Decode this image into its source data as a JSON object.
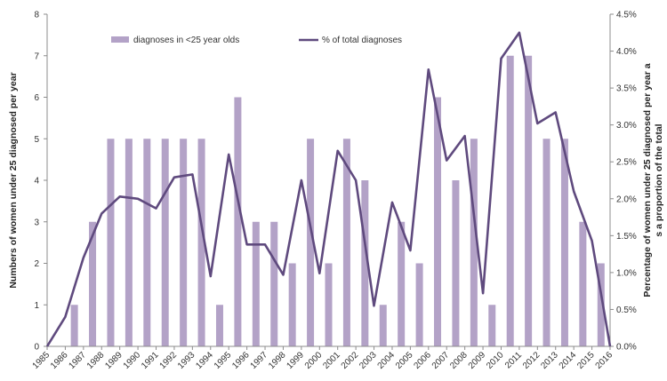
{
  "chart_data": {
    "type": "bar+line",
    "title": "",
    "categories": [
      "1985",
      "1986",
      "1987",
      "1988",
      "1989",
      "1990",
      "1991",
      "1992",
      "1993",
      "1994",
      "1995",
      "1996",
      "1997",
      "1998",
      "1999",
      "2000",
      "2001",
      "2002",
      "2003",
      "2004",
      "2005",
      "2006",
      "2007",
      "2008",
      "2009",
      "2010",
      "2011",
      "2012",
      "2013",
      "2014",
      "2015",
      "2016"
    ],
    "y_left": {
      "label": "Numbers of women under 25 diagnosed per year",
      "ylim": [
        0,
        8
      ],
      "ticks": [
        "0",
        "1",
        "2",
        "3",
        "4",
        "5",
        "6",
        "7",
        "8"
      ]
    },
    "y_right": {
      "label_line1": "Percentage of women under 25 diagnosed per year a",
      "label_line2": "s a proportion of the total",
      "ylim": [
        0,
        4.5
      ],
      "ticks": [
        "0.0%",
        "0.5%",
        "1.0%",
        "1.5%",
        "2.0%",
        "2.5%",
        "3.0%",
        "3.5%",
        "4.0%",
        "4.5%"
      ]
    },
    "series": [
      {
        "name": "diagnoses in  <25 year olds",
        "type": "bar",
        "axis": "left",
        "color": "#b3a2c7",
        "values": [
          0,
          1,
          3,
          5,
          5,
          5,
          5,
          5,
          5,
          1,
          6,
          3,
          3,
          2,
          5,
          2,
          5,
          4,
          1,
          3,
          2,
          6,
          4,
          5,
          1,
          7,
          7,
          5,
          5,
          3,
          2,
          0
        ]
      },
      {
        "name": "% of total diagnoses",
        "type": "line",
        "axis": "right",
        "color": "#5f4a7e",
        "values": [
          0.0,
          0.4,
          1.2,
          1.8,
          2.03,
          2.0,
          1.87,
          2.29,
          2.33,
          0.95,
          2.6,
          1.38,
          1.38,
          0.97,
          2.25,
          0.99,
          2.65,
          2.25,
          0.55,
          1.95,
          1.3,
          3.75,
          2.52,
          2.85,
          0.72,
          3.9,
          4.25,
          3.02,
          3.17,
          2.1,
          1.43,
          0.0
        ]
      }
    ],
    "grid": false,
    "legend_position": "top-left"
  }
}
